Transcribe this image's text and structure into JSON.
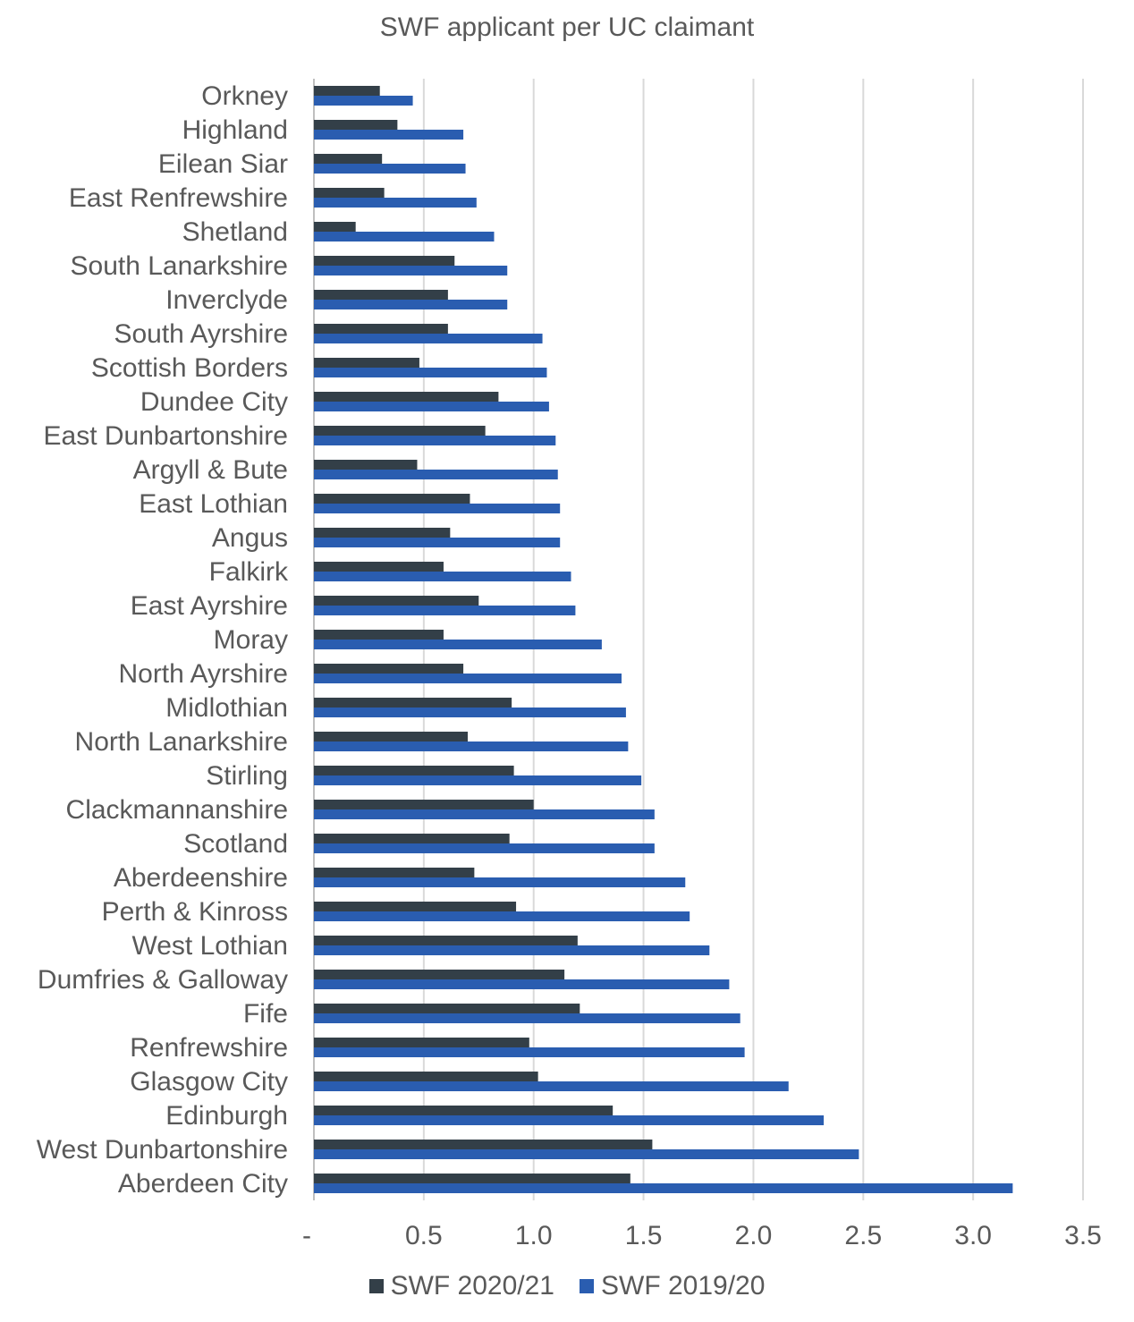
{
  "chart_data": {
    "type": "bar",
    "orientation": "horizontal",
    "title": "SWF applicant per UC claimant",
    "xlabel": "",
    "ylabel": "",
    "xlim": [
      0,
      3.5
    ],
    "x_ticks": [
      "-",
      "0.5",
      "1.0",
      "1.5",
      "2.0",
      "2.5",
      "3.0",
      "3.5"
    ],
    "grid": "vertical",
    "legend_position": "bottom",
    "categories": [
      "Orkney",
      "Highland",
      "Eilean Siar",
      "East Renfrewshire",
      "Shetland",
      "South Lanarkshire",
      "Inverclyde",
      "South Ayrshire",
      "Scottish Borders",
      "Dundee City",
      "East Dunbartonshire",
      "Argyll & Bute",
      "East Lothian",
      "Angus",
      "Falkirk",
      "East Ayrshire",
      "Moray",
      "North Ayrshire",
      "Midlothian",
      "North Lanarkshire",
      "Stirling",
      "Clackmannanshire",
      "Scotland",
      "Aberdeenshire",
      "Perth & Kinross",
      "West Lothian",
      "Dumfries & Galloway",
      "Fife",
      "Renfrewshire",
      "Glasgow City",
      "Edinburgh",
      "West Dunbartonshire",
      "Aberdeen City"
    ],
    "series": [
      {
        "name": "SWF 2020/21",
        "color": "#333f48",
        "values": [
          0.3,
          0.38,
          0.31,
          0.32,
          0.19,
          0.64,
          0.61,
          0.61,
          0.48,
          0.84,
          0.78,
          0.47,
          0.71,
          0.62,
          0.59,
          0.75,
          0.59,
          0.68,
          0.9,
          0.7,
          0.91,
          1.0,
          0.89,
          0.73,
          0.92,
          1.2,
          1.14,
          1.21,
          0.98,
          1.02,
          1.36,
          1.54,
          1.44
        ]
      },
      {
        "name": "SWF 2019/20",
        "color": "#2a5db0",
        "values": [
          0.45,
          0.68,
          0.69,
          0.74,
          0.82,
          0.88,
          0.88,
          1.04,
          1.06,
          1.07,
          1.1,
          1.11,
          1.12,
          1.12,
          1.17,
          1.19,
          1.31,
          1.4,
          1.42,
          1.43,
          1.49,
          1.55,
          1.55,
          1.69,
          1.71,
          1.8,
          1.89,
          1.94,
          1.96,
          2.16,
          2.32,
          2.48,
          3.18
        ]
      }
    ]
  }
}
